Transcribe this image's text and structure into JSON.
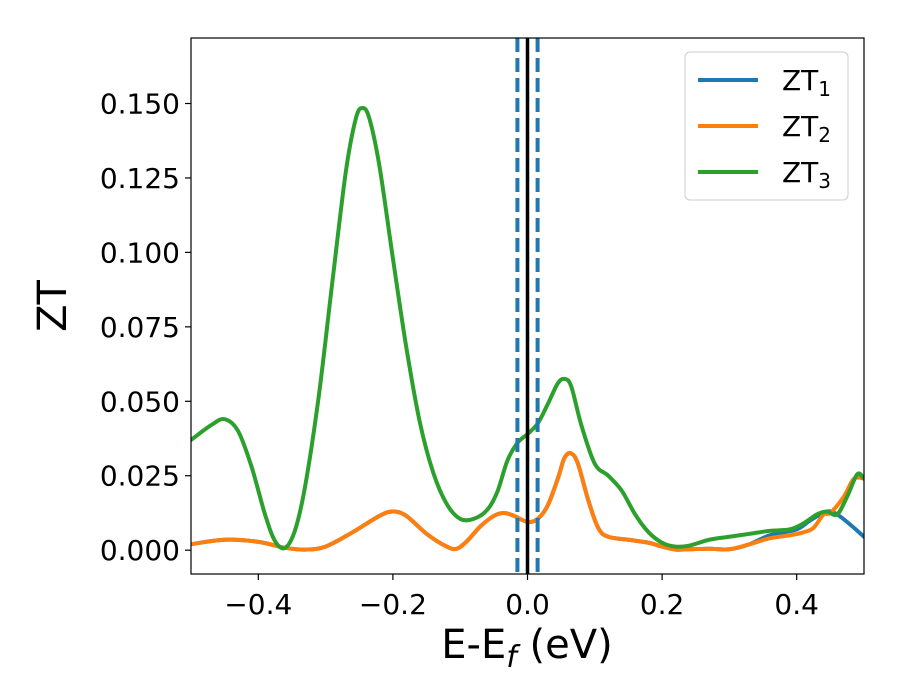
{
  "chart_data": {
    "type": "line",
    "title": "",
    "xlabel_main": "E-E",
    "xlabel_sub": "f",
    "xlabel_unit": " (eV)",
    "ylabel": "ZT",
    "xlim": [
      -0.5,
      0.5
    ],
    "ylim": [
      -0.008,
      0.172
    ],
    "x_ticks": [
      -0.4,
      -0.2,
      0.0,
      0.2,
      0.4
    ],
    "x_tick_labels": [
      "−0.4",
      "−0.2",
      "0.0",
      "0.2",
      "0.4"
    ],
    "y_ticks": [
      0.0,
      0.025,
      0.05,
      0.075,
      0.1,
      0.125,
      0.15
    ],
    "y_tick_labels": [
      "0.000",
      "0.025",
      "0.050",
      "0.075",
      "0.100",
      "0.125",
      "0.150"
    ],
    "grid": false,
    "legend_position": "top-right",
    "vertical_lines": [
      {
        "x": 0.0,
        "color": "#000000",
        "style": "solid"
      },
      {
        "x": -0.015,
        "color": "#1f77b4",
        "style": "dashed"
      },
      {
        "x": 0.015,
        "color": "#1f77b4",
        "style": "dashed"
      }
    ],
    "series": [
      {
        "legend_main": "ZT",
        "legend_sub": "1",
        "color": "#1f77b4",
        "points": [
          [
            -0.5,
            0.002
          ],
          [
            -0.45,
            0.0035
          ],
          [
            -0.4,
            0.0028
          ],
          [
            -0.36,
            0.0008
          ],
          [
            -0.33,
            0.0002
          ],
          [
            -0.3,
            0.0012
          ],
          [
            -0.26,
            0.006
          ],
          [
            -0.22,
            0.0115
          ],
          [
            -0.2,
            0.013
          ],
          [
            -0.18,
            0.0115
          ],
          [
            -0.15,
            0.0055
          ],
          [
            -0.12,
            0.0012
          ],
          [
            -0.105,
            0.0005
          ],
          [
            -0.09,
            0.003
          ],
          [
            -0.07,
            0.008
          ],
          [
            -0.05,
            0.0115
          ],
          [
            -0.035,
            0.0125
          ],
          [
            -0.02,
            0.0115
          ],
          [
            0.0,
            0.0095
          ],
          [
            0.015,
            0.0105
          ],
          [
            0.03,
            0.015
          ],
          [
            0.045,
            0.024
          ],
          [
            0.055,
            0.031
          ],
          [
            0.065,
            0.0325
          ],
          [
            0.075,
            0.029
          ],
          [
            0.09,
            0.017
          ],
          [
            0.105,
            0.0075
          ],
          [
            0.12,
            0.0045
          ],
          [
            0.15,
            0.0035
          ],
          [
            0.18,
            0.0025
          ],
          [
            0.2,
            0.0012
          ],
          [
            0.22,
            0.0002
          ],
          [
            0.24,
            0.0003
          ],
          [
            0.27,
            0.0005
          ],
          [
            0.3,
            0.0003
          ],
          [
            0.33,
            0.002
          ],
          [
            0.36,
            0.005
          ],
          [
            0.4,
            0.007
          ],
          [
            0.42,
            0.01
          ],
          [
            0.445,
            0.013
          ],
          [
            0.46,
            0.012
          ],
          [
            0.48,
            0.0085
          ],
          [
            0.5,
            0.0045
          ]
        ]
      },
      {
        "legend_main": "ZT",
        "legend_sub": "2",
        "color": "#ff7f0e",
        "points": [
          [
            -0.5,
            0.002
          ],
          [
            -0.45,
            0.0035
          ],
          [
            -0.4,
            0.0028
          ],
          [
            -0.36,
            0.0008
          ],
          [
            -0.33,
            0.0002
          ],
          [
            -0.3,
            0.0012
          ],
          [
            -0.26,
            0.006
          ],
          [
            -0.22,
            0.0115
          ],
          [
            -0.2,
            0.013
          ],
          [
            -0.18,
            0.0115
          ],
          [
            -0.15,
            0.0055
          ],
          [
            -0.12,
            0.0012
          ],
          [
            -0.105,
            0.0005
          ],
          [
            -0.09,
            0.003
          ],
          [
            -0.07,
            0.008
          ],
          [
            -0.05,
            0.0115
          ],
          [
            -0.035,
            0.0125
          ],
          [
            -0.02,
            0.0115
          ],
          [
            0.0,
            0.0095
          ],
          [
            0.015,
            0.0105
          ],
          [
            0.03,
            0.015
          ],
          [
            0.045,
            0.024
          ],
          [
            0.055,
            0.031
          ],
          [
            0.065,
            0.0325
          ],
          [
            0.075,
            0.029
          ],
          [
            0.09,
            0.017
          ],
          [
            0.105,
            0.0075
          ],
          [
            0.12,
            0.0045
          ],
          [
            0.15,
            0.0035
          ],
          [
            0.18,
            0.0025
          ],
          [
            0.2,
            0.0012
          ],
          [
            0.22,
            0.0002
          ],
          [
            0.24,
            0.0003
          ],
          [
            0.27,
            0.0005
          ],
          [
            0.3,
            0.0003
          ],
          [
            0.33,
            0.002
          ],
          [
            0.36,
            0.004
          ],
          [
            0.39,
            0.005
          ],
          [
            0.41,
            0.006
          ],
          [
            0.425,
            0.0075
          ],
          [
            0.44,
            0.012
          ],
          [
            0.45,
            0.0125
          ],
          [
            0.47,
            0.018
          ],
          [
            0.485,
            0.024
          ],
          [
            0.5,
            0.024
          ]
        ]
      },
      {
        "legend_main": "ZT",
        "legend_sub": "3",
        "color": "#2ca02c",
        "points": [
          [
            -0.5,
            0.037
          ],
          [
            -0.47,
            0.042
          ],
          [
            -0.45,
            0.044
          ],
          [
            -0.43,
            0.04
          ],
          [
            -0.41,
            0.028
          ],
          [
            -0.39,
            0.012
          ],
          [
            -0.375,
            0.003
          ],
          [
            -0.36,
            0.0008
          ],
          [
            -0.345,
            0.007
          ],
          [
            -0.33,
            0.022
          ],
          [
            -0.31,
            0.052
          ],
          [
            -0.29,
            0.09
          ],
          [
            -0.27,
            0.127
          ],
          [
            -0.255,
            0.145
          ],
          [
            -0.245,
            0.1485
          ],
          [
            -0.235,
            0.145
          ],
          [
            -0.22,
            0.129
          ],
          [
            -0.2,
            0.098
          ],
          [
            -0.18,
            0.068
          ],
          [
            -0.16,
            0.043
          ],
          [
            -0.14,
            0.026
          ],
          [
            -0.12,
            0.0155
          ],
          [
            -0.1,
            0.0105
          ],
          [
            -0.08,
            0.0105
          ],
          [
            -0.06,
            0.0135
          ],
          [
            -0.045,
            0.0195
          ],
          [
            -0.03,
            0.03
          ],
          [
            -0.015,
            0.036
          ],
          [
            0.0,
            0.039
          ],
          [
            0.015,
            0.0425
          ],
          [
            0.03,
            0.049
          ],
          [
            0.045,
            0.056
          ],
          [
            0.055,
            0.0575
          ],
          [
            0.065,
            0.055
          ],
          [
            0.08,
            0.042
          ],
          [
            0.1,
            0.029
          ],
          [
            0.12,
            0.025
          ],
          [
            0.14,
            0.02
          ],
          [
            0.16,
            0.012
          ],
          [
            0.18,
            0.006
          ],
          [
            0.2,
            0.0025
          ],
          [
            0.22,
            0.0012
          ],
          [
            0.24,
            0.0015
          ],
          [
            0.27,
            0.0035
          ],
          [
            0.3,
            0.0045
          ],
          [
            0.33,
            0.0055
          ],
          [
            0.36,
            0.0065
          ],
          [
            0.39,
            0.007
          ],
          [
            0.41,
            0.009
          ],
          [
            0.43,
            0.012
          ],
          [
            0.445,
            0.013
          ],
          [
            0.46,
            0.012
          ],
          [
            0.475,
            0.018
          ],
          [
            0.49,
            0.0255
          ],
          [
            0.5,
            0.024
          ]
        ]
      }
    ]
  }
}
